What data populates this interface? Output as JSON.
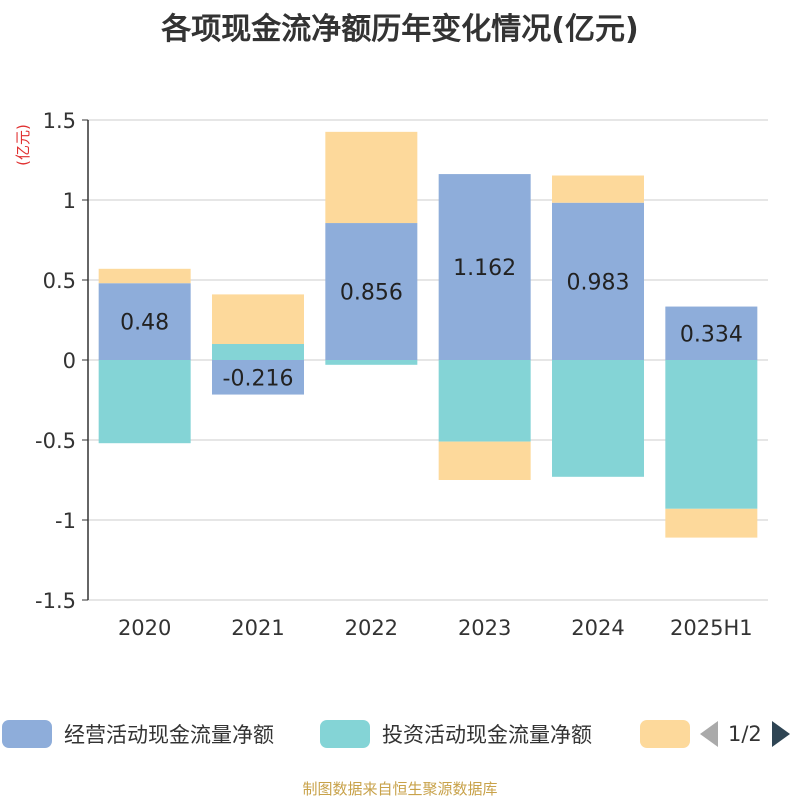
{
  "title": "各项现金流净额历年变化情况(亿元)",
  "source": "制图数据来自恒生聚源数据库",
  "pager": "1/2",
  "colors": {
    "operating": "#8eadda",
    "investing": "#84d4d6",
    "financing": "#fdd99b",
    "axis": "#333333",
    "grid": "#cccccc",
    "unit": "#e03030"
  },
  "chart_data": {
    "type": "bar",
    "stacked": true,
    "categories": [
      "2020",
      "2021",
      "2022",
      "2023",
      "2024",
      "2025H1"
    ],
    "ylabel": "(亿元)",
    "ylim": [
      -1.5,
      1.5
    ],
    "yticks": [
      1.5,
      1,
      0.5,
      0,
      -0.5,
      -1,
      -1.5
    ],
    "ytick_labels": [
      "1.5",
      "1",
      "0.5",
      "0",
      "-0.5",
      "-1",
      "-1.5"
    ],
    "grid": true,
    "series": [
      {
        "name": "经营活动现金流量净额",
        "values": [
          0.48,
          -0.216,
          0.856,
          1.162,
          0.983,
          0.334
        ],
        "labels": [
          "0.48",
          "-0.216",
          "0.856",
          "1.162",
          "0.983",
          "0.334"
        ]
      },
      {
        "name": "投资活动现金流量净额",
        "values": [
          -0.52,
          0.1,
          -0.03,
          -0.51,
          -0.73,
          -0.93
        ]
      },
      {
        "name": "",
        "values": [
          0.09,
          0.31,
          0.57,
          -0.24,
          0.17,
          -0.18
        ]
      }
    ]
  }
}
